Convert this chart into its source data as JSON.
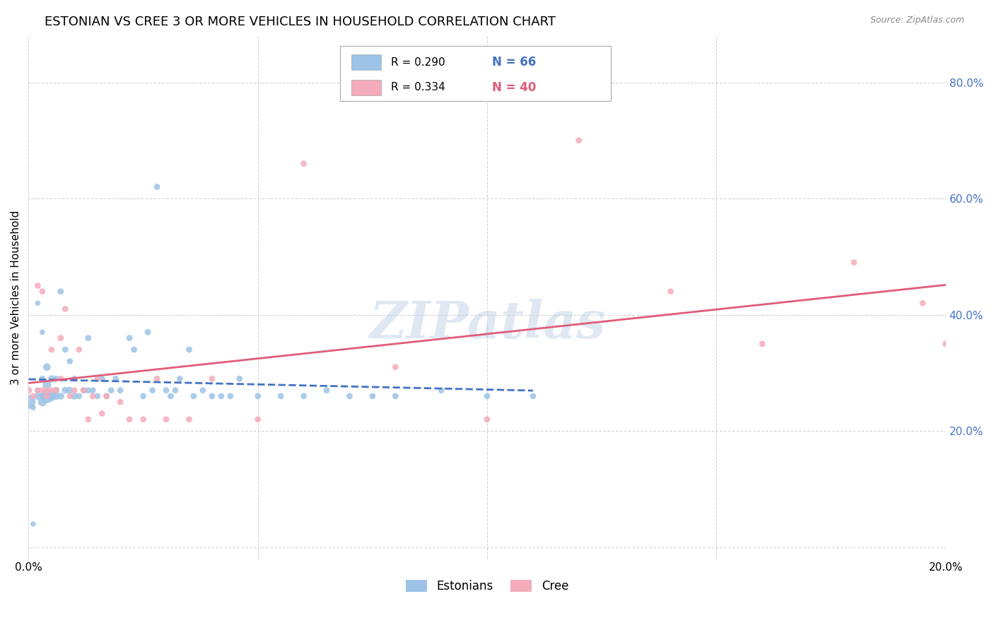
{
  "title": "ESTONIAN VS CREE 3 OR MORE VEHICLES IN HOUSEHOLD CORRELATION CHART",
  "source": "Source: ZipAtlas.com",
  "ylabel": "3 or more Vehicles in Household",
  "xlim": [
    0.0,
    0.2
  ],
  "ylim": [
    -0.02,
    0.88
  ],
  "yticks": [
    0.0,
    0.2,
    0.4,
    0.6,
    0.8
  ],
  "ytick_labels_right": [
    "",
    "20.0%",
    "40.0%",
    "60.0%",
    "80.0%"
  ],
  "xticks": [
    0.0,
    0.05,
    0.1,
    0.15,
    0.2
  ],
  "xtick_labels": [
    "0.0%",
    "",
    "",
    "",
    "20.0%"
  ],
  "watermark": "ZIPatlas",
  "legend_r_estonian": "R = 0.290",
  "legend_n_estonian": "N = 66",
  "legend_r_cree": "R = 0.334",
  "legend_n_cree": "N = 40",
  "estonian_color": "#9DC3E6",
  "cree_color": "#F4ACBA",
  "estonian_line_color": "#4472C4",
  "cree_line_color": "#E05C7A",
  "background_color": "#FFFFFF",
  "grid_color": "#CCCCCC",
  "title_fontsize": 13,
  "label_fontsize": 11,
  "tick_fontsize": 11,
  "estonian_x": [
    0.0,
    0.001,
    0.001,
    0.002,
    0.002,
    0.002,
    0.002,
    0.003,
    0.003,
    0.003,
    0.003,
    0.004,
    0.004,
    0.004,
    0.005,
    0.005,
    0.005,
    0.006,
    0.006,
    0.006,
    0.007,
    0.007,
    0.008,
    0.008,
    0.009,
    0.009,
    0.01,
    0.01,
    0.011,
    0.012,
    0.013,
    0.013,
    0.014,
    0.015,
    0.016,
    0.017,
    0.018,
    0.019,
    0.02,
    0.022,
    0.023,
    0.025,
    0.026,
    0.027,
    0.028,
    0.03,
    0.031,
    0.032,
    0.033,
    0.035,
    0.036,
    0.038,
    0.04,
    0.042,
    0.044,
    0.046,
    0.05,
    0.055,
    0.06,
    0.065,
    0.07,
    0.075,
    0.08,
    0.09,
    0.1,
    0.11
  ],
  "estonian_y": [
    0.25,
    0.04,
    0.24,
    0.26,
    0.27,
    0.42,
    0.27,
    0.25,
    0.26,
    0.29,
    0.37,
    0.26,
    0.28,
    0.31,
    0.26,
    0.29,
    0.26,
    0.26,
    0.27,
    0.29,
    0.26,
    0.44,
    0.27,
    0.34,
    0.27,
    0.32,
    0.26,
    0.29,
    0.26,
    0.27,
    0.27,
    0.36,
    0.27,
    0.26,
    0.29,
    0.26,
    0.27,
    0.29,
    0.27,
    0.36,
    0.34,
    0.26,
    0.37,
    0.27,
    0.62,
    0.27,
    0.26,
    0.27,
    0.29,
    0.34,
    0.26,
    0.27,
    0.26,
    0.26,
    0.26,
    0.29,
    0.26,
    0.26,
    0.26,
    0.27,
    0.26,
    0.26,
    0.26,
    0.27,
    0.26,
    0.26
  ],
  "estonian_sizes": [
    200,
    30,
    30,
    60,
    30,
    30,
    30,
    80,
    50,
    40,
    30,
    200,
    80,
    60,
    100,
    50,
    40,
    60,
    50,
    40,
    50,
    40,
    50,
    40,
    50,
    40,
    50,
    40,
    40,
    40,
    40,
    40,
    40,
    40,
    40,
    40,
    40,
    40,
    40,
    40,
    40,
    40,
    40,
    40,
    40,
    40,
    40,
    40,
    40,
    40,
    40,
    40,
    40,
    40,
    40,
    40,
    40,
    40,
    40,
    40,
    40,
    40,
    40,
    40,
    40,
    40
  ],
  "cree_x": [
    0.0,
    0.001,
    0.002,
    0.002,
    0.003,
    0.003,
    0.004,
    0.004,
    0.005,
    0.005,
    0.006,
    0.007,
    0.007,
    0.008,
    0.009,
    0.01,
    0.011,
    0.012,
    0.013,
    0.014,
    0.015,
    0.016,
    0.017,
    0.02,
    0.022,
    0.025,
    0.028,
    0.03,
    0.035,
    0.04,
    0.05,
    0.06,
    0.08,
    0.1,
    0.12,
    0.14,
    0.16,
    0.18,
    0.195,
    0.2
  ],
  "cree_y": [
    0.27,
    0.26,
    0.27,
    0.45,
    0.27,
    0.44,
    0.27,
    0.26,
    0.27,
    0.34,
    0.27,
    0.29,
    0.36,
    0.41,
    0.26,
    0.27,
    0.34,
    0.27,
    0.22,
    0.26,
    0.29,
    0.23,
    0.26,
    0.25,
    0.22,
    0.22,
    0.29,
    0.22,
    0.22,
    0.29,
    0.22,
    0.66,
    0.31,
    0.22,
    0.7,
    0.44,
    0.35,
    0.49,
    0.42,
    0.35
  ],
  "cree_sizes": [
    50,
    40,
    40,
    40,
    40,
    40,
    40,
    40,
    40,
    40,
    40,
    40,
    40,
    40,
    40,
    40,
    40,
    40,
    40,
    40,
    40,
    40,
    40,
    40,
    40,
    40,
    40,
    40,
    40,
    40,
    40,
    40,
    40,
    40,
    40,
    40,
    40,
    40,
    40,
    40
  ]
}
